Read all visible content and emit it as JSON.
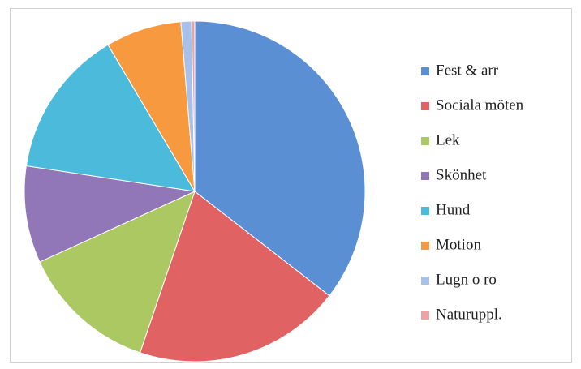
{
  "chart_data": {
    "type": "pie",
    "categories": [
      "Fest & arr",
      "Sociala möten",
      "Lek",
      "Skönhet",
      "Hund",
      "Motion",
      "Lugn o ro",
      "Naturuppl."
    ],
    "values": [
      35.5,
      19.7,
      13,
      9.2,
      14.1,
      7.2,
      1,
      0.3
    ],
    "colors": [
      "#5b8fd4",
      "#e06262",
      "#abc862",
      "#9277b8",
      "#4cbadb",
      "#f7993f",
      "#a8c0ea",
      "#eba3a3"
    ]
  }
}
